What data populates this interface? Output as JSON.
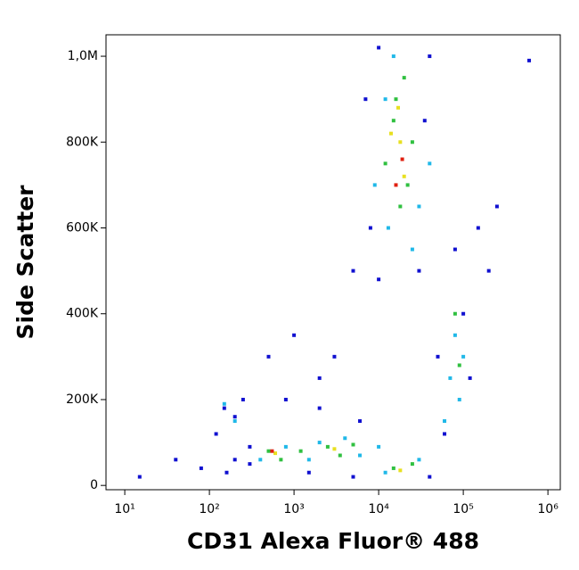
{
  "chart_data": {
    "type": "scatter",
    "x_label": "CD31 Alexa Fluor® 488",
    "y_label": "Side Scatter",
    "xscale": "log",
    "xlim": [
      6,
      1400000
    ],
    "ylim": [
      -10000,
      1050000
    ],
    "xticks": [
      {
        "value": 10,
        "label": "10¹"
      },
      {
        "value": 100,
        "label": "10²"
      },
      {
        "value": 1000,
        "label": "10³"
      },
      {
        "value": 10000,
        "label": "10⁴"
      },
      {
        "value": 100000,
        "label": "10⁵"
      },
      {
        "value": 1000000,
        "label": "10⁶"
      }
    ],
    "yticks": [
      0,
      {
        "value": 200000,
        "label": "200K"
      },
      {
        "value": 400000,
        "label": "400K"
      },
      {
        "value": 600000,
        "label": "600K"
      },
      {
        "value": 800000,
        "label": "800K"
      },
      {
        "value": 1000000,
        "label": "1,0M"
      }
    ],
    "series": [
      {
        "color": "#1010d0",
        "x": [
          150,
          200,
          120,
          250,
          300,
          80,
          40,
          15,
          200,
          500,
          1000,
          2000,
          3000,
          5000,
          6000,
          2000,
          800,
          50000,
          150000,
          200000,
          250000,
          80000,
          7000,
          8000,
          40000,
          30000,
          10000,
          60000,
          120000,
          100000,
          600000,
          300,
          1500,
          5000,
          40000,
          160,
          10000,
          35000
        ],
        "y": [
          180000,
          160000,
          120000,
          200000,
          90000,
          40000,
          60000,
          20000,
          60000,
          300000,
          350000,
          250000,
          300000,
          500000,
          150000,
          180000,
          200000,
          300000,
          600000,
          500000,
          650000,
          550000,
          900000,
          600000,
          1000000,
          500000,
          480000,
          120000,
          250000,
          400000,
          990000,
          50000,
          30000,
          20000,
          20000,
          30000,
          1020000,
          850000
        ]
      },
      {
        "color": "#20b8e8",
        "x": [
          9000,
          12000,
          30000,
          25000,
          15000,
          13000,
          40000,
          80000,
          70000,
          90000,
          100000,
          60000,
          400,
          800,
          2000,
          4000,
          1500,
          10000,
          30000,
          12000,
          200,
          150,
          6000
        ],
        "y": [
          700000,
          900000,
          650000,
          550000,
          1000000,
          600000,
          750000,
          350000,
          250000,
          200000,
          300000,
          150000,
          60000,
          90000,
          100000,
          110000,
          60000,
          90000,
          60000,
          30000,
          150000,
          190000,
          70000
        ]
      },
      {
        "color": "#30c040",
        "x": [
          15000,
          20000,
          12000,
          25000,
          18000,
          22000,
          16000,
          500,
          700,
          2500,
          3500,
          1200,
          15000,
          25000,
          80000,
          90000,
          5000
        ],
        "y": [
          850000,
          950000,
          750000,
          800000,
          650000,
          700000,
          900000,
          80000,
          60000,
          90000,
          70000,
          80000,
          40000,
          50000,
          400000,
          280000,
          95000
        ]
      },
      {
        "color": "#e8e020",
        "x": [
          18000,
          14000,
          20000,
          17000,
          600,
          3000,
          18000
        ],
        "y": [
          800000,
          820000,
          720000,
          880000,
          75000,
          85000,
          35000
        ]
      },
      {
        "color": "#e02010",
        "x": [
          19000,
          16000,
          550
        ],
        "y": [
          760000,
          700000,
          80000
        ]
      }
    ]
  }
}
